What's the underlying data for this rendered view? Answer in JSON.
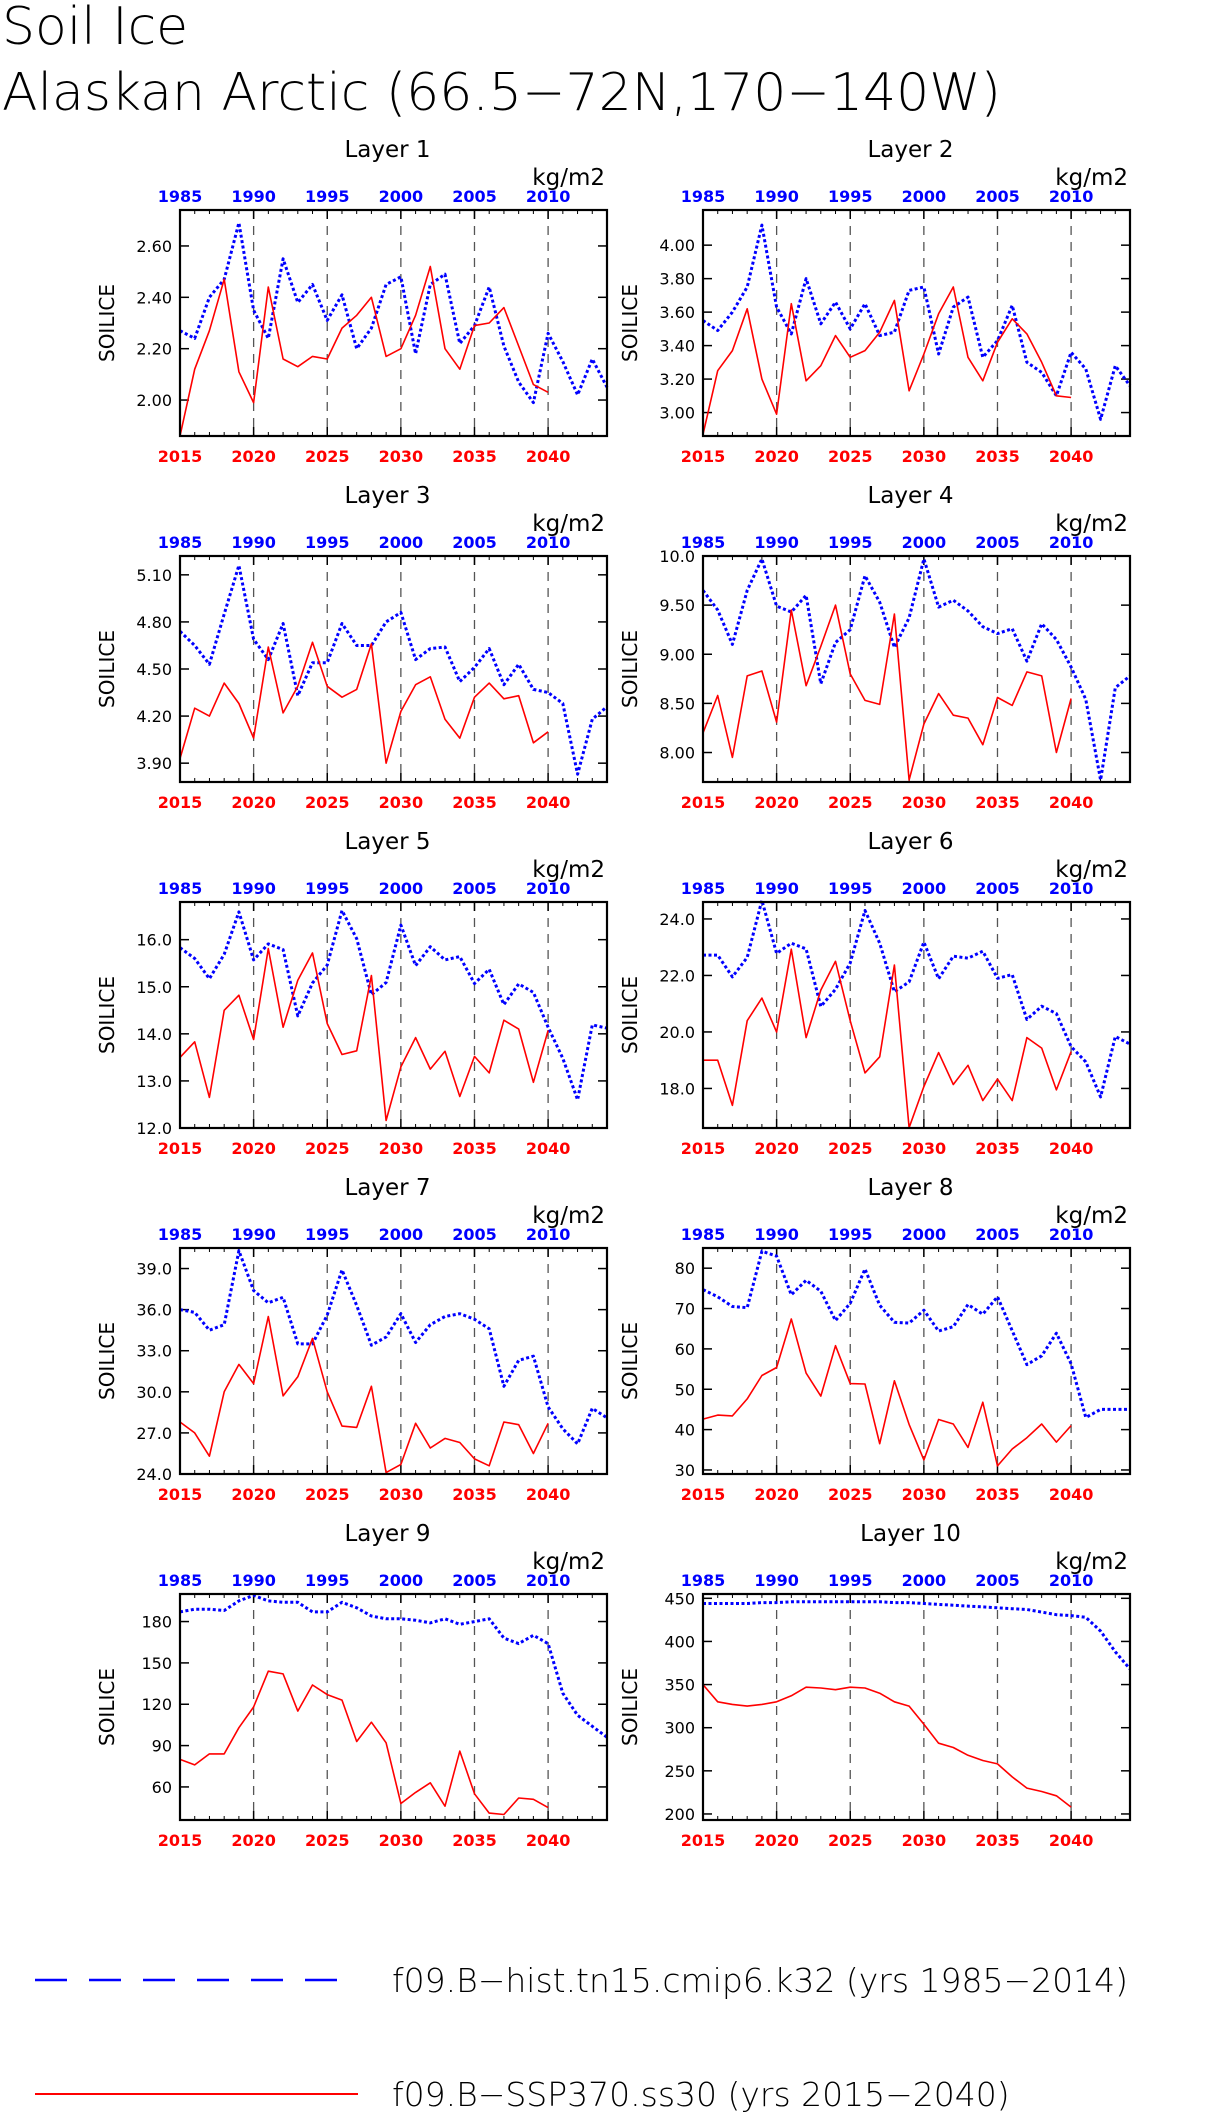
{
  "page": {
    "title_line1": "Soil Ice",
    "title_line2": "Alaskan Arctic (66.5−72N,170−140W)",
    "units": "kg/m2",
    "ylabel": "SOILICE"
  },
  "colors": {
    "hist": "#0000ff",
    "ssp": "#ff0000",
    "axis": "#000000",
    "grid": "#555555"
  },
  "legend": {
    "hist_label": "f09.B−hist.tn15.cmip6.k32 (yrs 1985−2014)",
    "ssp_label": "f09.B−SSP370.ss30 (yrs 2015−2040)"
  },
  "chart_data": [
    {
      "type": "line",
      "title": "Layer 1",
      "ylabel": "SOILICE",
      "units": "kg/m2",
      "ylim": [
        1.86,
        2.74
      ],
      "yticks": [
        2.0,
        2.2,
        2.4,
        2.6
      ],
      "ytick_labels": [
        "2.00",
        "2.20",
        "2.40",
        "2.60"
      ],
      "x_top_ticks": [
        1985,
        1990,
        1995,
        2000,
        2005,
        2010
      ],
      "x_bottom_ticks": [
        2015,
        2020,
        2025,
        2030,
        2035,
        2040
      ],
      "series": [
        {
          "name": "f09.B−hist.tn15.cmip6.k32 (yrs 1985−2014)",
          "x_start": 1985,
          "values": [
            2.27,
            2.24,
            2.4,
            2.47,
            2.69,
            2.35,
            2.24,
            2.55,
            2.38,
            2.45,
            2.31,
            2.41,
            2.2,
            2.28,
            2.45,
            2.48,
            2.18,
            2.45,
            2.49,
            2.22,
            2.29,
            2.44,
            2.21,
            2.07,
            1.99,
            2.26,
            2.15,
            2.02,
            2.16,
            2.05
          ]
        },
        {
          "name": "f09.B−SSP370.ss30 (yrs 2015−2040)",
          "x_start": 2015,
          "values": [
            1.86,
            2.12,
            2.27,
            2.47,
            2.11,
            1.99,
            2.44,
            2.16,
            2.13,
            2.17,
            2.16,
            2.28,
            2.33,
            2.4,
            2.17,
            2.2,
            2.33,
            2.52,
            2.2,
            2.12,
            2.29,
            2.3,
            2.36,
            2.21,
            2.06,
            2.03
          ]
        }
      ]
    },
    {
      "type": "line",
      "title": "Layer 2",
      "ylabel": "SOILICE",
      "units": "kg/m2",
      "ylim": [
        2.86,
        4.21
      ],
      "yticks": [
        3.0,
        3.2,
        3.4,
        3.6,
        3.8,
        4.0
      ],
      "ytick_labels": [
        "3.00",
        "3.20",
        "3.40",
        "3.60",
        "3.80",
        "4.00"
      ],
      "x_top_ticks": [
        1985,
        1990,
        1995,
        2000,
        2005,
        2010
      ],
      "x_bottom_ticks": [
        2015,
        2020,
        2025,
        2030,
        2035,
        2040
      ],
      "series": [
        {
          "name": "f09.B−hist.tn15.cmip6.k32 (yrs 1985−2014)",
          "x_start": 1985,
          "values": [
            3.55,
            3.49,
            3.6,
            3.75,
            4.12,
            3.63,
            3.47,
            3.8,
            3.53,
            3.66,
            3.5,
            3.65,
            3.46,
            3.48,
            3.73,
            3.75,
            3.35,
            3.63,
            3.69,
            3.33,
            3.43,
            3.64,
            3.3,
            3.24,
            3.1,
            3.36,
            3.26,
            2.96,
            3.28,
            3.16
          ]
        },
        {
          "name": "f09.B−SSP370.ss30 (yrs 2015−2040)",
          "x_start": 2015,
          "values": [
            2.87,
            3.25,
            3.37,
            3.62,
            3.2,
            2.99,
            3.65,
            3.19,
            3.28,
            3.46,
            3.33,
            3.37,
            3.48,
            3.67,
            3.13,
            3.35,
            3.59,
            3.75,
            3.33,
            3.19,
            3.42,
            3.56,
            3.47,
            3.3,
            3.1,
            3.09
          ]
        }
      ]
    },
    {
      "type": "line",
      "title": "Layer 3",
      "ylabel": "SOILICE",
      "units": "kg/m2",
      "ylim": [
        3.78,
        5.22
      ],
      "yticks": [
        3.9,
        4.2,
        4.5,
        4.8,
        5.1
      ],
      "ytick_labels": [
        "3.90",
        "4.20",
        "4.50",
        "4.80",
        "5.10"
      ],
      "x_top_ticks": [
        1985,
        1990,
        1995,
        2000,
        2005,
        2010
      ],
      "x_bottom_ticks": [
        2015,
        2020,
        2025,
        2030,
        2035,
        2040
      ],
      "series": [
        {
          "name": "f09.B−hist.tn15.cmip6.k32 (yrs 1985−2014)",
          "x_start": 1985,
          "values": [
            4.74,
            4.65,
            4.53,
            4.85,
            5.16,
            4.69,
            4.56,
            4.79,
            4.33,
            4.54,
            4.54,
            4.79,
            4.65,
            4.65,
            4.8,
            4.86,
            4.56,
            4.63,
            4.64,
            4.42,
            4.51,
            4.63,
            4.4,
            4.53,
            4.37,
            4.35,
            4.28,
            3.83,
            4.18,
            4.26
          ]
        },
        {
          "name": "f09.B−SSP370.ss30 (yrs 2015−2040)",
          "x_start": 2015,
          "values": [
            3.93,
            4.25,
            4.2,
            4.41,
            4.28,
            4.06,
            4.64,
            4.22,
            4.39,
            4.67,
            4.39,
            4.32,
            4.37,
            4.66,
            3.9,
            4.23,
            4.4,
            4.45,
            4.18,
            4.06,
            4.32,
            4.41,
            4.31,
            4.33,
            4.03,
            4.1
          ]
        }
      ]
    },
    {
      "type": "line",
      "title": "Layer 4",
      "ylabel": "SOILICE",
      "units": "kg/m2",
      "ylim": [
        7.7,
        10.0
      ],
      "yticks": [
        8.0,
        8.5,
        9.0,
        9.5,
        10.0
      ],
      "ytick_labels": [
        "8.00",
        "8.50",
        "9.00",
        "9.50",
        "10.0"
      ],
      "x_top_ticks": [
        1985,
        1990,
        1995,
        2000,
        2005,
        2010
      ],
      "x_bottom_ticks": [
        2015,
        2020,
        2025,
        2030,
        2035,
        2040
      ],
      "series": [
        {
          "name": "f09.B−hist.tn15.cmip6.k32 (yrs 1985−2014)",
          "x_start": 1985,
          "values": [
            9.65,
            9.45,
            9.1,
            9.65,
            9.97,
            9.49,
            9.43,
            9.6,
            8.7,
            9.12,
            9.25,
            9.8,
            9.53,
            9.07,
            9.37,
            9.97,
            9.48,
            9.55,
            9.44,
            9.28,
            9.21,
            9.26,
            8.93,
            9.31,
            9.15,
            8.87,
            8.54,
            7.72,
            8.66,
            8.78
          ]
        },
        {
          "name": "f09.B−SSP370.ss30 (yrs 2015−2040)",
          "x_start": 2015,
          "values": [
            8.2,
            8.58,
            7.95,
            8.78,
            8.83,
            8.31,
            9.45,
            8.68,
            9.08,
            9.5,
            8.8,
            8.53,
            8.49,
            9.41,
            7.72,
            8.29,
            8.6,
            8.38,
            8.35,
            8.08,
            8.56,
            8.48,
            8.82,
            8.78,
            8.0,
            8.55
          ]
        }
      ]
    },
    {
      "type": "line",
      "title": "Layer 5",
      "ylabel": "SOILICE",
      "units": "kg/m2",
      "ylim": [
        12.0,
        16.8
      ],
      "yticks": [
        12.0,
        13.0,
        14.0,
        15.0,
        16.0
      ],
      "ytick_labels": [
        "12.0",
        "13.0",
        "14.0",
        "15.0",
        "16.0"
      ],
      "x_top_ticks": [
        1985,
        1990,
        1995,
        2000,
        2005,
        2010
      ],
      "x_bottom_ticks": [
        2015,
        2020,
        2025,
        2030,
        2035,
        2040
      ],
      "series": [
        {
          "name": "f09.B−hist.tn15.cmip6.k32 (yrs 1985−2014)",
          "x_start": 1985,
          "values": [
            15.83,
            15.6,
            15.17,
            15.69,
            16.59,
            15.57,
            15.91,
            15.79,
            14.38,
            15.08,
            15.46,
            16.62,
            16.02,
            14.83,
            15.09,
            16.31,
            15.45,
            15.85,
            15.57,
            15.64,
            15.07,
            15.37,
            14.62,
            15.06,
            14.88,
            14.14,
            13.48,
            12.6,
            14.19,
            14.12
          ]
        },
        {
          "name": "f09.B−SSP370.ss30 (yrs 2015−2040)",
          "x_start": 2015,
          "values": [
            13.5,
            13.83,
            12.65,
            14.5,
            14.82,
            13.88,
            15.81,
            14.14,
            15.14,
            15.72,
            14.22,
            13.56,
            13.64,
            15.24,
            12.16,
            13.3,
            13.92,
            13.25,
            13.63,
            12.67,
            13.52,
            13.17,
            14.29,
            14.1,
            12.97,
            14.07
          ]
        }
      ]
    },
    {
      "type": "line",
      "title": "Layer 6",
      "ylabel": "SOILICE",
      "units": "kg/m2",
      "ylim": [
        16.6,
        24.6
      ],
      "yticks": [
        18.0,
        20.0,
        22.0,
        24.0
      ],
      "ytick_labels": [
        "18.0",
        "20.0",
        "22.0",
        "24.0"
      ],
      "x_top_ticks": [
        1985,
        1990,
        1995,
        2000,
        2005,
        2010
      ],
      "x_bottom_ticks": [
        2015,
        2020,
        2025,
        2030,
        2035,
        2040
      ],
      "series": [
        {
          "name": "f09.B−hist.tn15.cmip6.k32 (yrs 1985−2014)",
          "x_start": 1985,
          "values": [
            22.72,
            22.72,
            21.95,
            22.64,
            24.66,
            22.78,
            23.14,
            22.94,
            20.9,
            21.51,
            22.44,
            24.3,
            23.14,
            21.42,
            21.77,
            23.18,
            21.88,
            22.68,
            22.61,
            22.86,
            21.9,
            22.03,
            20.44,
            20.91,
            20.65,
            19.48,
            18.94,
            17.7,
            19.84,
            19.57
          ]
        },
        {
          "name": "f09.B−SSP370.ss30 (yrs 2015−2040)",
          "x_start": 2015,
          "values": [
            19.0,
            19.0,
            17.4,
            20.4,
            21.2,
            20.0,
            22.93,
            19.8,
            21.48,
            22.5,
            20.4,
            18.55,
            19.12,
            22.37,
            16.61,
            18.07,
            19.27,
            18.14,
            18.82,
            17.57,
            18.33,
            17.57,
            19.8,
            19.43,
            17.95,
            19.3
          ]
        }
      ]
    },
    {
      "type": "line",
      "title": "Layer 7",
      "ylabel": "SOILICE",
      "units": "kg/m2",
      "ylim": [
        24.0,
        40.5
      ],
      "yticks": [
        24.0,
        27.0,
        30.0,
        33.0,
        36.0,
        39.0
      ],
      "ytick_labels": [
        "24.0",
        "27.0",
        "30.0",
        "33.0",
        "36.0",
        "39.0"
      ],
      "x_top_ticks": [
        1985,
        1990,
        1995,
        2000,
        2005,
        2010
      ],
      "x_bottom_ticks": [
        2015,
        2020,
        2025,
        2030,
        2035,
        2040
      ],
      "series": [
        {
          "name": "f09.B−hist.tn15.cmip6.k32 (yrs 1985−2014)",
          "x_start": 1985,
          "values": [
            36.0,
            35.8,
            34.5,
            34.9,
            40.3,
            37.4,
            36.5,
            36.9,
            33.5,
            33.5,
            35.6,
            38.9,
            36.3,
            33.4,
            34.0,
            35.7,
            33.6,
            34.9,
            35.5,
            35.7,
            35.3,
            34.6,
            30.4,
            32.3,
            32.6,
            28.9,
            27.3,
            26.2,
            28.8,
            28.1
          ]
        },
        {
          "name": "f09.B−SSP370.ss30 (yrs 2015−2040)",
          "x_start": 2015,
          "values": [
            27.8,
            27.0,
            25.3,
            30.0,
            32.0,
            30.6,
            35.5,
            29.7,
            31.1,
            33.9,
            30.0,
            27.5,
            27.4,
            30.4,
            24.1,
            24.7,
            27.7,
            25.9,
            26.6,
            26.3,
            25.1,
            24.6,
            27.8,
            27.6,
            25.5,
            27.7
          ]
        }
      ]
    },
    {
      "type": "line",
      "title": "Layer 8",
      "ylabel": "SOILICE",
      "units": "kg/m2",
      "ylim": [
        29.0,
        85.0
      ],
      "yticks": [
        30,
        40,
        50,
        60,
        70,
        80
      ],
      "ytick_labels": [
        "30",
        "40",
        "50",
        "60",
        "70",
        "80"
      ],
      "x_top_ticks": [
        1985,
        1990,
        1995,
        2000,
        2005,
        2010
      ],
      "x_bottom_ticks": [
        2015,
        2020,
        2025,
        2030,
        2035,
        2040
      ],
      "series": [
        {
          "name": "f09.B−hist.tn15.cmip6.k32 (yrs 1985−2014)",
          "x_start": 1985,
          "values": [
            74.7,
            72.9,
            70.5,
            70.2,
            84.2,
            83.0,
            73.4,
            77.0,
            74.3,
            67.0,
            71.3,
            79.8,
            70.8,
            66.6,
            66.4,
            69.6,
            64.4,
            65.5,
            71.0,
            68.6,
            72.9,
            64.5,
            56.1,
            58.3,
            63.9,
            56.3,
            43.0,
            45.0,
            45.0,
            45.0
          ]
        },
        {
          "name": "f09.B−SSP370.ss30 (yrs 2015−2040)",
          "x_start": 2015,
          "values": [
            42.6,
            43.6,
            43.4,
            47.6,
            53.4,
            55.4,
            67.4,
            54.0,
            48.3,
            60.8,
            51.4,
            51.3,
            36.5,
            52.1,
            41.3,
            32.5,
            42.5,
            41.4,
            35.6,
            46.8,
            31.0,
            35.2,
            38.0,
            41.4,
            36.9,
            41.0
          ]
        }
      ]
    },
    {
      "type": "line",
      "title": "Layer 9",
      "ylabel": "SOILICE",
      "units": "kg/m2",
      "ylim": [
        36.0,
        200.0
      ],
      "yticks": [
        60,
        90,
        120,
        150,
        180
      ],
      "ytick_labels": [
        "60",
        "90",
        "120",
        "150",
        "180"
      ],
      "x_top_ticks": [
        1985,
        1990,
        1995,
        2000,
        2005,
        2010
      ],
      "x_bottom_ticks": [
        2015,
        2020,
        2025,
        2030,
        2035,
        2040
      ],
      "series": [
        {
          "name": "f09.B−hist.tn15.cmip6.k32 (yrs 1985−2014)",
          "x_start": 1985,
          "values": [
            187,
            189,
            189,
            188,
            195,
            199,
            195,
            194,
            194,
            187,
            187,
            194,
            190,
            184,
            182,
            182,
            181,
            179,
            182,
            178,
            180,
            182,
            168,
            164,
            170,
            164,
            128,
            112,
            104,
            96
          ]
        },
        {
          "name": "f09.B−SSP370.ss30 (yrs 2015−2040)",
          "x_start": 2015,
          "values": [
            80,
            76,
            84,
            84,
            103,
            118,
            144,
            142,
            115,
            134,
            127,
            123,
            93,
            107,
            92,
            48,
            56,
            63,
            46,
            86,
            55,
            41,
            40,
            52,
            51,
            45
          ]
        }
      ]
    },
    {
      "type": "line",
      "title": "Layer 10",
      "ylabel": "SOILICE",
      "units": "kg/m2",
      "ylim": [
        193.0,
        455.0
      ],
      "yticks": [
        200,
        250,
        300,
        350,
        400,
        450
      ],
      "ytick_labels": [
        "200",
        "250",
        "300",
        "350",
        "400",
        "450"
      ],
      "x_top_ticks": [
        1985,
        1990,
        1995,
        2000,
        2005,
        2010
      ],
      "x_bottom_ticks": [
        2015,
        2020,
        2025,
        2030,
        2035,
        2040
      ],
      "series": [
        {
          "name": "f09.B−hist.tn15.cmip6.k32 (yrs 1985−2014)",
          "x_start": 1985,
          "values": [
            444,
            444,
            444,
            444,
            445,
            445,
            446,
            446,
            446,
            446,
            446,
            446,
            446,
            445,
            445,
            444,
            443,
            442,
            441,
            440,
            439,
            438,
            437,
            434,
            431,
            430,
            428,
            412,
            388,
            368
          ]
        },
        {
          "name": "f09.B−SSP370.ss30 (yrs 2015−2040)",
          "x_start": 2015,
          "values": [
            350,
            330,
            327,
            325,
            327,
            330,
            337,
            347,
            346,
            344,
            347,
            346,
            340,
            330,
            325,
            304,
            282,
            277,
            268,
            262,
            258,
            243,
            230,
            226,
            221,
            208
          ]
        }
      ]
    }
  ]
}
